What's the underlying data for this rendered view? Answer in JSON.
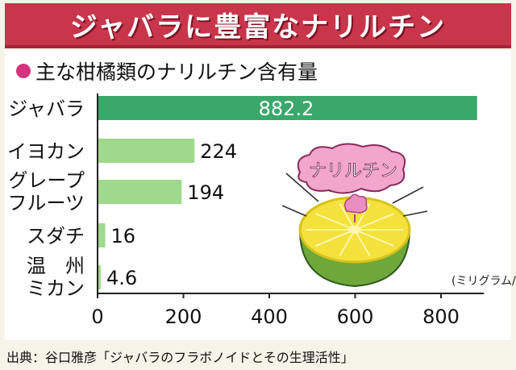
{
  "header": {
    "title": "ジャバラに豊富なナリルチン"
  },
  "chart_data": {
    "type": "bar",
    "orientation": "horizontal",
    "title": "主な柑橘類のナリルチン含有量",
    "unit_label": "(ミリグラム/個)",
    "categories": [
      [
        "ジャバラ"
      ],
      [
        "イヨカン"
      ],
      [
        "グレープ",
        "フルーツ"
      ],
      [
        "スダチ"
      ],
      [
        "温　州",
        "ミカン"
      ]
    ],
    "value_labels": [
      "882.2",
      "224",
      "194",
      "16",
      "4.6"
    ],
    "values": [
      882.2,
      224,
      194,
      16,
      4.6
    ],
    "highlight_index": 0,
    "xlim": [
      0,
      900
    ],
    "xticks": [
      0,
      200,
      400,
      600,
      800
    ],
    "grid": false,
    "colors": {
      "bar": "#9fd98b",
      "bar_highlight": "#3aa86b",
      "axis": "#222222",
      "highlight_label": "#ffffff"
    }
  },
  "illustration": {
    "speech_label": "ナリルチン",
    "icon": "citrus-half-icon"
  },
  "footer": {
    "source": "出典：谷口雅彦「ジャバラのフラボノイドとその生理活性」"
  }
}
